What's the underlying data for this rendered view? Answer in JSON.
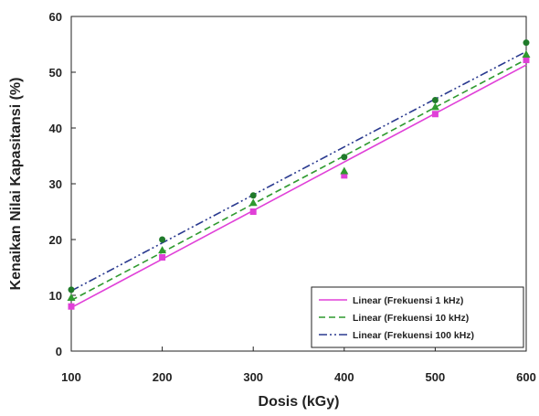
{
  "chart_data": {
    "type": "scatter",
    "title": "",
    "xlabel": "Dosis (kGy)",
    "ylabel": "Kenaikan Nilai Kapasitansi (%)",
    "xlim": [
      100,
      600
    ],
    "ylim": [
      0,
      60
    ],
    "xticks": [
      100,
      200,
      300,
      400,
      500,
      600
    ],
    "yticks": [
      0,
      10,
      20,
      30,
      40,
      50,
      60
    ],
    "grid": false,
    "legend_position": "bottom-right",
    "x": [
      100,
      200,
      300,
      400,
      500,
      600
    ],
    "series": [
      {
        "points": [
          8,
          16.8,
          25,
          31.5,
          42.5,
          52.2
        ],
        "fit": [
          7.8,
          16.5,
          25.2,
          33.9,
          42.6,
          51.3
        ],
        "label": "Linear (Frekuensi 1 kHz)",
        "color": "#e040d8",
        "marker": "square",
        "dash": "solid"
      },
      {
        "points": [
          9.6,
          18.1,
          26.6,
          32.3,
          43.8,
          53.2
        ],
        "fit": [
          9.1,
          17.7,
          26.4,
          35.0,
          43.7,
          52.3
        ],
        "label": "Linear (Frekuensi 10 kHz)",
        "color": "#2f9a2f",
        "marker": "triangle",
        "dash": "dashed"
      },
      {
        "points": [
          11,
          20,
          27.9,
          34.8,
          45,
          55.3
        ],
        "fit": [
          10.8,
          19.4,
          28.0,
          36.6,
          45.2,
          53.7
        ],
        "label": "Linear (Frekuensi 100 kHz)",
        "color": "#2a3a8f",
        "marker": "circle",
        "marker_color": "#1f7a2a",
        "dash": "dash-dot-dot"
      }
    ]
  }
}
